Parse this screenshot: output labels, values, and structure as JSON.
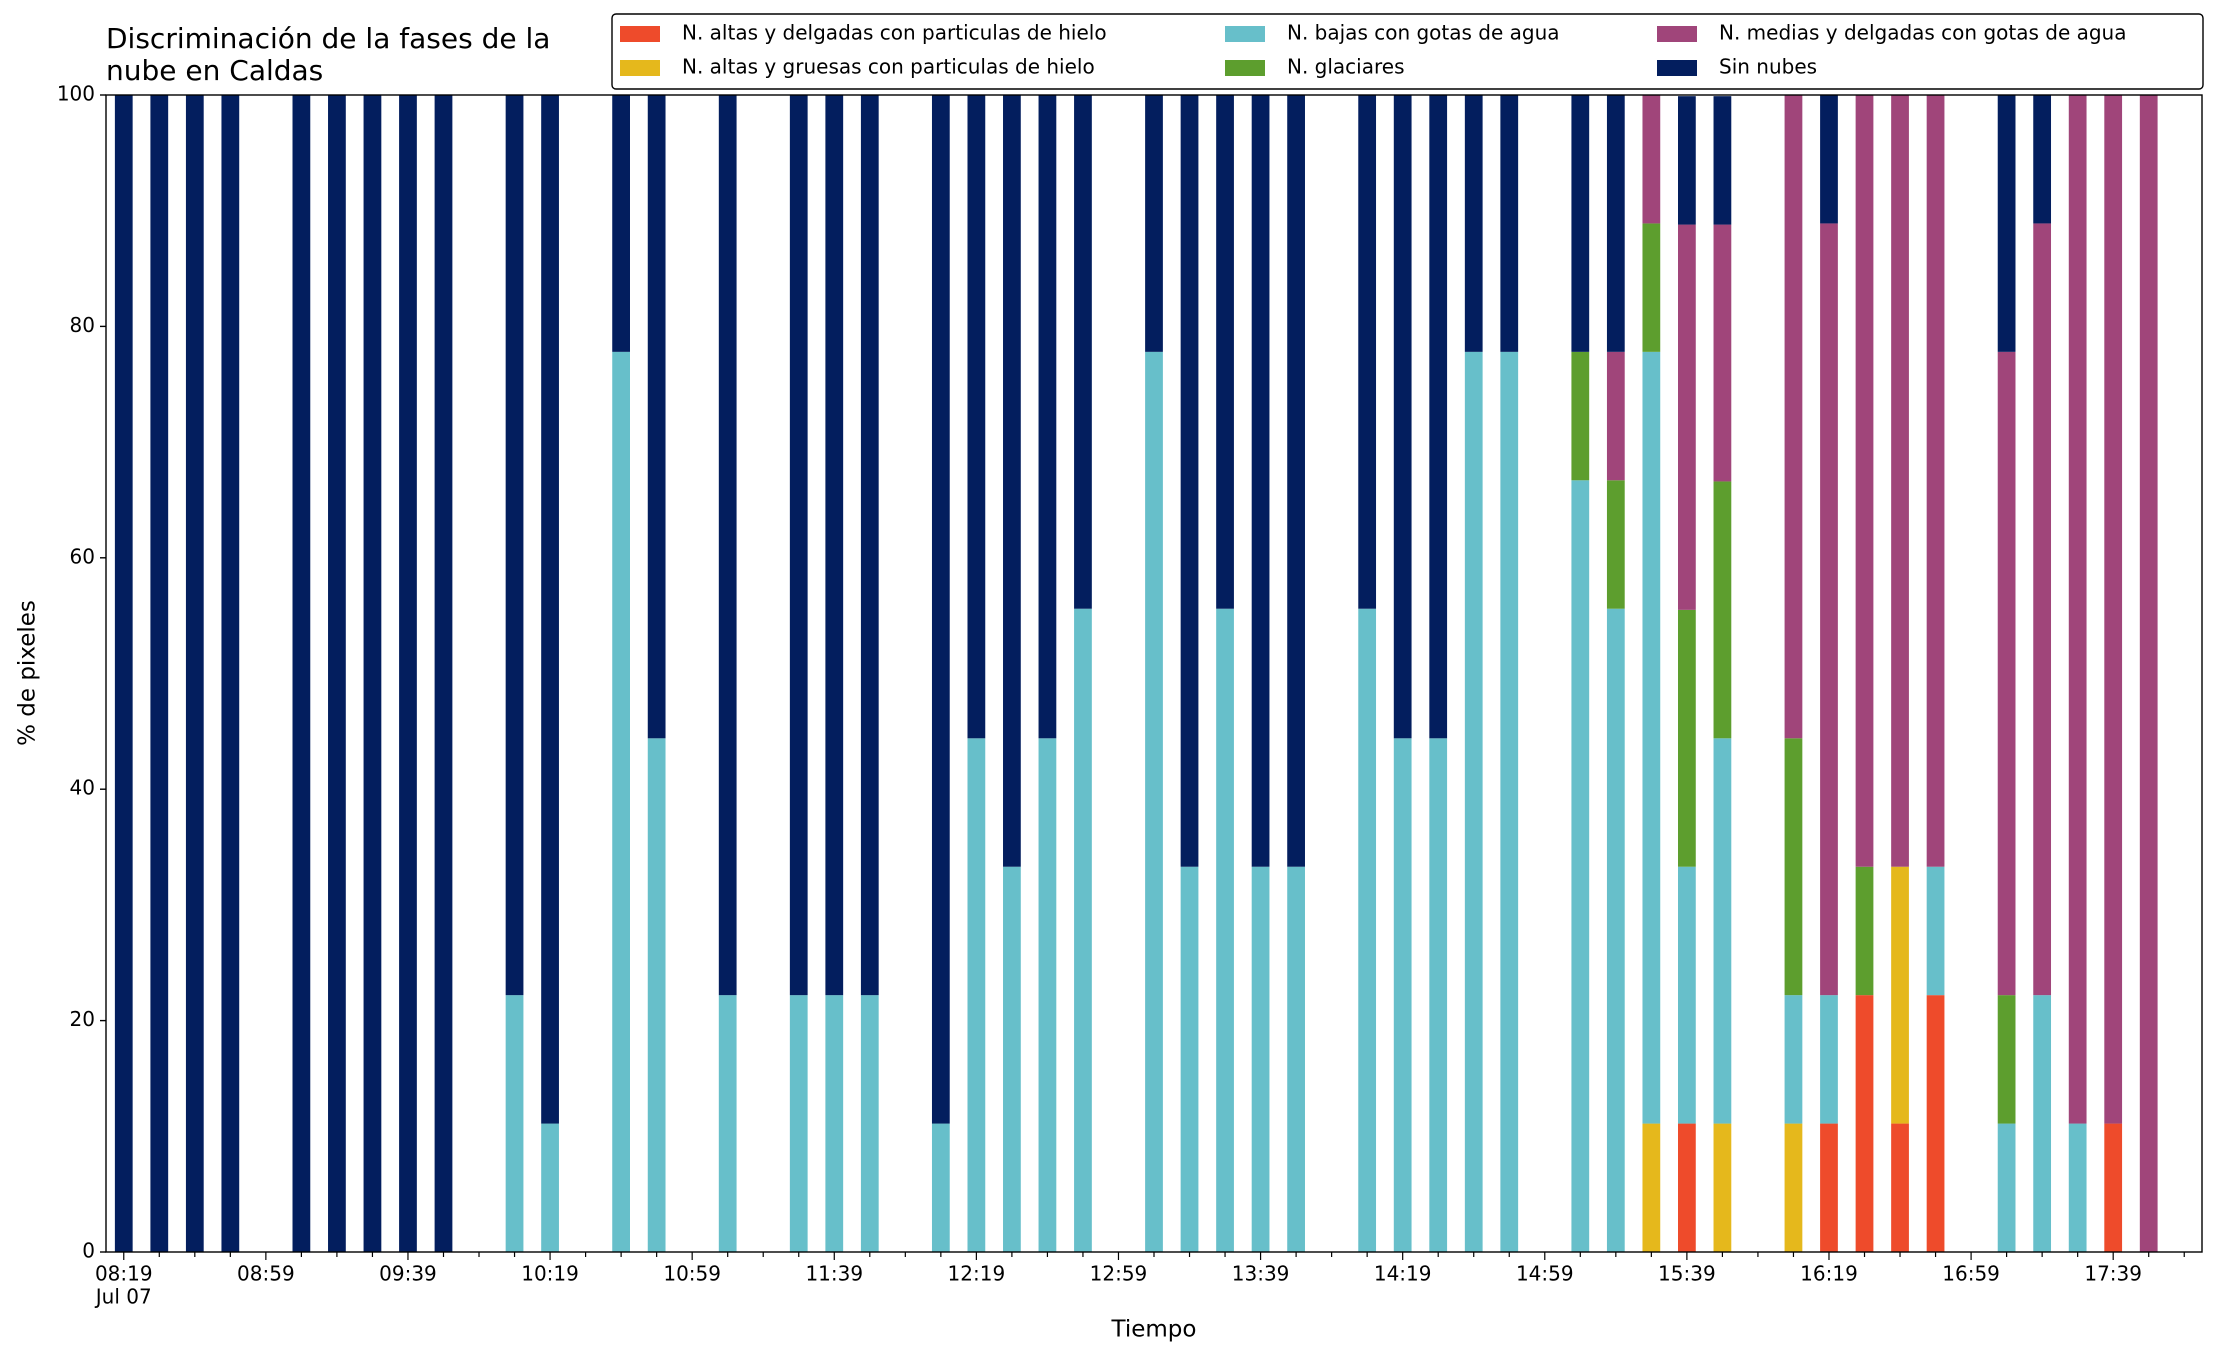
{
  "chart_data": {
    "type": "stacked_bar",
    "title": "Discriminación de la fases de la\nnube en Caldas",
    "xlabel": "Tiempo",
    "ylabel": "% de pixeles",
    "x_date_label": "Jul 07",
    "categories": [
      "08:19",
      null,
      null,
      null,
      "08:59",
      null,
      null,
      null,
      "09:39",
      null,
      null,
      null,
      "10:19",
      null,
      null,
      null,
      "10:59",
      null,
      null,
      null,
      "11:39",
      null,
      null,
      null,
      "12:19",
      null,
      null,
      null,
      "12:59",
      null,
      null,
      null,
      "13:39",
      null,
      null,
      null,
      "14:19",
      null,
      null,
      null,
      "14:59",
      null,
      null,
      null,
      "15:39",
      null,
      null,
      null,
      "16:19",
      null,
      null,
      null,
      "16:59",
      null,
      null,
      null,
      "17:39",
      null,
      null
    ],
    "series": [
      {
        "name": "N. altas y delgadas con particulas de hielo",
        "color": "#ee4b2b",
        "values": [
          0,
          0,
          0,
          0,
          null,
          0,
          0,
          0,
          0,
          0,
          null,
          0,
          0,
          null,
          0,
          0,
          null,
          0,
          null,
          0,
          0,
          0,
          null,
          0,
          0,
          0,
          0,
          0,
          null,
          0,
          0,
          0,
          0,
          0,
          null,
          0,
          0,
          0,
          0,
          0,
          null,
          0,
          0,
          0,
          11.1,
          0,
          null,
          0,
          11.1,
          22.2,
          11.1,
          22.2,
          null,
          0,
          0,
          0,
          11.1,
          0,
          null
        ]
      },
      {
        "name": "N. altas y gruesas con particulas de hielo",
        "color": "#e5b81c",
        "values": [
          0,
          0,
          0,
          0,
          null,
          0,
          0,
          0,
          0,
          0,
          null,
          0,
          0,
          null,
          0,
          0,
          null,
          0,
          null,
          0,
          0,
          0,
          null,
          0,
          0,
          0,
          0,
          0,
          null,
          0,
          0,
          0,
          0,
          0,
          null,
          0,
          0,
          0,
          0,
          0,
          null,
          0,
          0,
          11.1,
          0,
          11.1,
          null,
          11.1,
          0,
          0,
          22.2,
          0,
          null,
          0,
          0,
          0,
          0,
          0,
          null
        ]
      },
      {
        "name": "N. bajas con gotas de agua",
        "color": "#67bfca",
        "values": [
          0,
          0,
          0,
          0,
          null,
          0,
          0,
          0,
          0,
          0,
          null,
          22.2,
          11.1,
          null,
          77.8,
          44.4,
          null,
          22.2,
          null,
          22.2,
          22.2,
          22.2,
          null,
          11.1,
          44.4,
          33.3,
          44.4,
          55.6,
          null,
          77.8,
          33.3,
          55.6,
          33.3,
          33.3,
          null,
          55.6,
          44.4,
          44.4,
          77.8,
          77.8,
          null,
          66.7,
          55.6,
          66.7,
          22.2,
          33.3,
          null,
          11.1,
          11.1,
          0,
          0,
          11.1,
          null,
          11.1,
          22.2,
          11.1,
          0,
          0,
          null
        ]
      },
      {
        "name": "N. glaciares",
        "color": "#5d9e2e",
        "values": [
          0,
          0,
          0,
          0,
          null,
          0,
          0,
          0,
          0,
          0,
          null,
          0,
          0,
          null,
          0,
          0,
          null,
          0,
          null,
          0,
          0,
          0,
          null,
          0,
          0,
          0,
          0,
          0,
          null,
          0,
          0,
          0,
          0,
          0,
          null,
          0,
          0,
          0,
          0,
          0,
          null,
          11.1,
          11.1,
          11.1,
          22.2,
          22.2,
          null,
          22.2,
          0,
          11.1,
          0,
          0,
          null,
          11.1,
          0,
          0,
          0,
          0,
          null
        ]
      },
      {
        "name": "N. medias y delgadas con gotas de agua",
        "color": "#a0457a",
        "values": [
          0,
          0,
          0,
          0,
          null,
          0,
          0,
          0,
          0,
          0,
          null,
          0,
          0,
          null,
          0,
          0,
          null,
          0,
          null,
          0,
          0,
          0,
          null,
          0,
          0,
          0,
          0,
          0,
          null,
          0,
          0,
          0,
          0,
          0,
          null,
          0,
          0,
          0,
          0,
          0,
          null,
          0,
          11.1,
          11.1,
          33.3,
          22.2,
          null,
          55.6,
          66.7,
          66.7,
          66.7,
          66.7,
          null,
          55.6,
          66.7,
          88.9,
          88.9,
          100,
          null
        ]
      },
      {
        "name": "Sin nubes",
        "color": "#031e5e",
        "values": [
          100,
          100,
          100,
          100,
          null,
          100,
          100,
          100,
          100,
          100,
          null,
          77.8,
          88.9,
          null,
          22.2,
          55.6,
          null,
          77.8,
          null,
          77.8,
          77.8,
          77.8,
          null,
          88.9,
          55.6,
          66.7,
          55.6,
          44.4,
          null,
          22.2,
          66.7,
          44.4,
          66.7,
          66.7,
          null,
          44.4,
          55.6,
          55.6,
          22.2,
          22.2,
          null,
          22.2,
          22.2,
          0,
          11.1,
          11.1,
          null,
          0,
          11.1,
          0,
          0,
          0,
          null,
          22.2,
          11.1,
          0,
          0,
          0,
          null
        ]
      }
    ],
    "ylim": [
      0,
      100
    ],
    "yticks": [
      0,
      20,
      40,
      60,
      80,
      100
    ],
    "grid": false,
    "legend": "upper right"
  }
}
